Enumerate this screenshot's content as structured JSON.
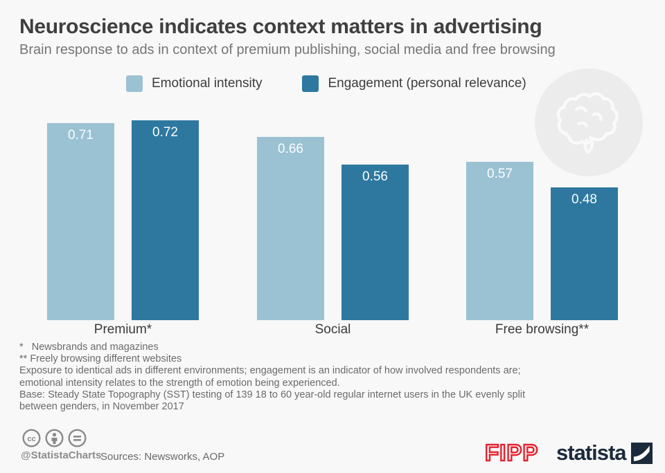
{
  "header": {
    "title": "Neuroscience indicates context matters in advertising",
    "subtitle": "Brain response to ads in context of premium publishing, social media and free browsing"
  },
  "legend": [
    {
      "label": "Emotional intensity",
      "color": "#9bc2d3"
    },
    {
      "label": "Engagement (personal relevance)",
      "color": "#2e78a0"
    }
  ],
  "chart_data": {
    "type": "bar",
    "categories": [
      "Premium*",
      "Social",
      "Free browsing**"
    ],
    "series": [
      {
        "name": "Emotional intensity",
        "color": "#9bc2d3",
        "values": [
          0.71,
          0.66,
          0.57
        ]
      },
      {
        "name": "Engagement (personal relevance)",
        "color": "#2e78a0",
        "values": [
          0.72,
          0.56,
          0.48
        ]
      }
    ],
    "ylim": [
      0,
      0.8
    ],
    "value_labels": true,
    "grid": false,
    "legend_position": "top",
    "title": "Neuroscience indicates context matters in advertising",
    "xlabel": "",
    "ylabel": ""
  },
  "footnotes": [
    "*   Newsbrands and magazines",
    "** Freely browsing different websites",
    "Exposure to identical ads in different environments; engagement is an indicator of how involved respondents are;",
    "emotional intensity relates to the strength of emotion being experienced.",
    "Base: Steady State Topography (SST) testing of 139 18 to 60 year-old regular internet users in the UK evenly split",
    "between genders, in November 2017"
  ],
  "footer": {
    "handle": "@StatistaCharts",
    "sources": "Sources: Newsworks, AOP",
    "fipp_label": "FIPP",
    "statista_label": "statista",
    "license_icons": [
      "cc-icon",
      "attribution-icon",
      "no-derivatives-icon"
    ]
  },
  "colors": {
    "background": "#f8f8f8",
    "bar_light": "#9bc2d3",
    "bar_dark": "#2e78a0",
    "fipp_red": "#e8212e",
    "statista_navy": "#1b2a3c"
  },
  "decor": {
    "brain_badge": "brain-icon"
  }
}
